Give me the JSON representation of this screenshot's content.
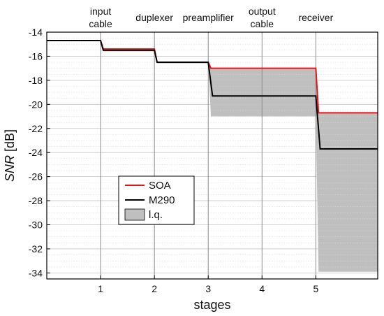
{
  "chart_data": {
    "type": "line",
    "xlabel": "stages",
    "ylabel": "SNR [dB]",
    "ylabel_italic_part": "SNR",
    "ylabel_rest": " [dB]",
    "xlim": [
      0,
      6.15
    ],
    "ylim": [
      -34.5,
      -14
    ],
    "x_ticks": [
      1,
      2,
      3,
      4,
      5
    ],
    "y_ticks": [
      -14,
      -16,
      -18,
      -20,
      -22,
      -24,
      -26,
      -28,
      -30,
      -32,
      -34
    ],
    "grid": true,
    "stage_labels": [
      {
        "lines": [
          "input",
          "cable"
        ],
        "x": 1
      },
      {
        "lines": [
          "duplexer"
        ],
        "x": 2
      },
      {
        "lines": [
          "preamplifier"
        ],
        "x": 3
      },
      {
        "lines": [
          "output",
          "cable"
        ],
        "x": 4
      },
      {
        "lines": [
          "receiver"
        ],
        "x": 5
      }
    ],
    "series": [
      {
        "name": "SOA",
        "color": "#e8141b",
        "points": [
          [
            0,
            -14.7
          ],
          [
            1,
            -14.7
          ],
          [
            1.05,
            -15.4
          ],
          [
            2,
            -15.4
          ],
          [
            2.05,
            -16.5
          ],
          [
            3,
            -16.5
          ],
          [
            3.05,
            -17.0
          ],
          [
            5,
            -17.0
          ],
          [
            5.05,
            -20.7
          ],
          [
            6.15,
            -20.7
          ]
        ]
      },
      {
        "name": "M290",
        "color": "#000000",
        "points": [
          [
            0,
            -14.7
          ],
          [
            1,
            -14.7
          ],
          [
            1.05,
            -15.5
          ],
          [
            2,
            -15.5
          ],
          [
            2.05,
            -16.5
          ],
          [
            3,
            -16.5
          ],
          [
            3.08,
            -19.3
          ],
          [
            5,
            -19.3
          ],
          [
            5.08,
            -23.7
          ],
          [
            6.15,
            -23.7
          ]
        ]
      }
    ],
    "band": {
      "name": "l.q.",
      "color": "#bfbfbf",
      "upper": [
        [
          1,
          -14.7
        ],
        [
          1.05,
          -15.4
        ],
        [
          2,
          -15.4
        ],
        [
          2.05,
          -16.5
        ],
        [
          3,
          -16.5
        ],
        [
          3.05,
          -17.0
        ],
        [
          5,
          -17.0
        ],
        [
          5.05,
          -20.7
        ],
        [
          6.15,
          -20.7
        ]
      ],
      "lower": [
        [
          1,
          -14.7
        ],
        [
          1.05,
          -15.6
        ],
        [
          2,
          -15.6
        ],
        [
          2.05,
          -16.6
        ],
        [
          3,
          -16.6
        ],
        [
          3.05,
          -21.0
        ],
        [
          5,
          -21.0
        ],
        [
          5.05,
          -33.9
        ],
        [
          6.15,
          -33.9
        ]
      ]
    },
    "legend": {
      "placement": "lower-left",
      "entries": [
        {
          "label": "SOA",
          "kind": "line",
          "color": "#e8141b"
        },
        {
          "label": "M290",
          "kind": "line",
          "color": "#000000"
        },
        {
          "label": "l.q.",
          "kind": "patch",
          "color": "#bfbfbf"
        }
      ]
    }
  }
}
